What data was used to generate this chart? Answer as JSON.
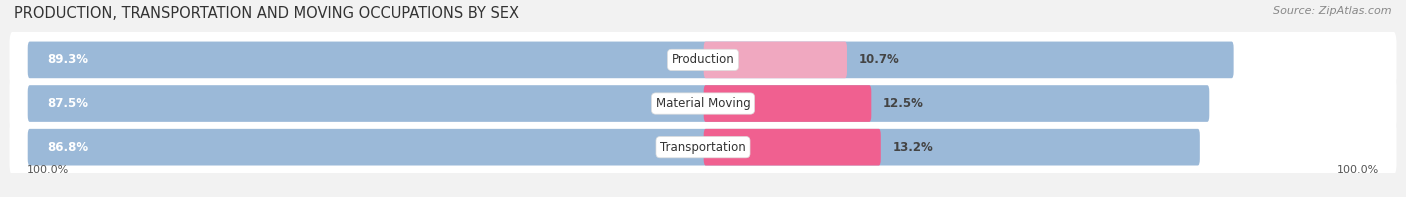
{
  "title": "PRODUCTION, TRANSPORTATION AND MOVING OCCUPATIONS BY SEX",
  "source": "Source: ZipAtlas.com",
  "categories": [
    "Production",
    "Material Moving",
    "Transportation"
  ],
  "male_values": [
    89.3,
    87.5,
    86.8
  ],
  "female_values": [
    10.7,
    12.5,
    13.2
  ],
  "male_color": "#9bb9d8",
  "female_color": "#f06090",
  "female_color_prod": "#f0a8c0",
  "background_color": "#f2f2f2",
  "row_bg_color": "#e8e8e8",
  "title_fontsize": 10.5,
  "source_fontsize": 8,
  "bar_label_fontsize": 8.5,
  "category_fontsize": 8.5,
  "legend_fontsize": 8.5,
  "axis_label_fontsize": 8
}
